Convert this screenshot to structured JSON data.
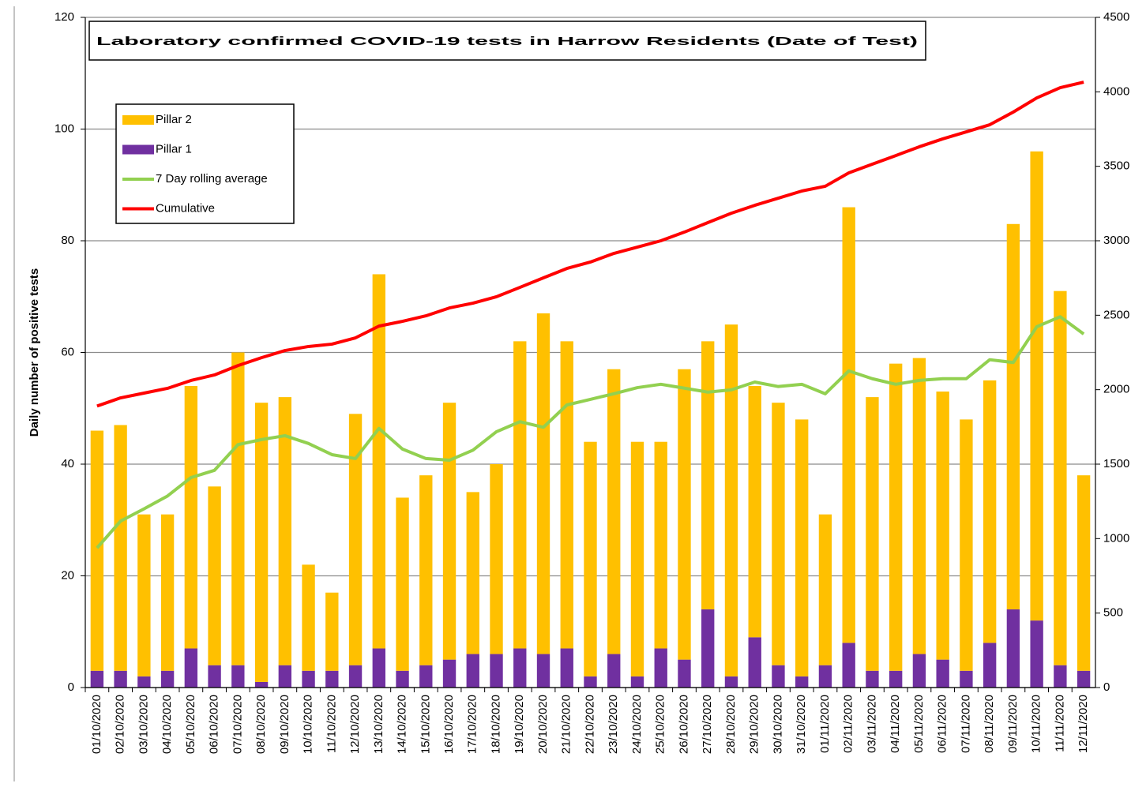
{
  "chart_data": {
    "type": "bar",
    "stacked": true,
    "title": "Laboratory confirmed COVID-19 tests in Harrow Residents (Date of Test)",
    "y_label": "Daily number of positive tests",
    "categories": [
      "01/10/2020",
      "02/10/2020",
      "03/10/2020",
      "04/10/2020",
      "05/10/2020",
      "06/10/2020",
      "07/10/2020",
      "08/10/2020",
      "09/10/2020",
      "10/10/2020",
      "11/10/2020",
      "12/10/2020",
      "13/10/2020",
      "14/10/2020",
      "15/10/2020",
      "16/10/2020",
      "17/10/2020",
      "18/10/2020",
      "19/10/2020",
      "20/10/2020",
      "21/10/2020",
      "22/10/2020",
      "23/10/2020",
      "24/10/2020",
      "25/10/2020",
      "26/10/2020",
      "27/10/2020",
      "28/10/2020",
      "29/10/2020",
      "30/10/2020",
      "31/10/2020",
      "01/11/2020",
      "02/11/2020",
      "03/11/2020",
      "04/11/2020",
      "05/11/2020",
      "06/11/2020",
      "07/11/2020",
      "08/11/2020",
      "09/11/2020",
      "10/11/2020",
      "11/11/2020",
      "12/11/2020"
    ],
    "series": [
      {
        "name": "Pillar 2",
        "type": "bar",
        "color": "#FFC000",
        "values": [
          43,
          44,
          29,
          28,
          47,
          32,
          56,
          50,
          48,
          19,
          14,
          45,
          67,
          31,
          34,
          46,
          29,
          34,
          55,
          61,
          55,
          42,
          51,
          42,
          37,
          52,
          48,
          63,
          45,
          47,
          46,
          27,
          78,
          49,
          55,
          53,
          48,
          45,
          47,
          69,
          84,
          67,
          35
        ]
      },
      {
        "name": "Pillar 1",
        "type": "bar",
        "color": "#7030A0",
        "values": [
          3,
          3,
          2,
          3,
          7,
          4,
          4,
          1,
          4,
          3,
          3,
          4,
          7,
          3,
          4,
          5,
          6,
          6,
          7,
          6,
          7,
          2,
          6,
          2,
          7,
          5,
          14,
          2,
          9,
          4,
          2,
          4,
          8,
          3,
          3,
          6,
          5,
          3,
          8,
          14,
          12,
          4,
          3
        ]
      },
      {
        "name": "7 Day rolling average",
        "type": "line",
        "color": "#92D050",
        "values": [
          25,
          29.8,
          32,
          34.3,
          37.6,
          38.9,
          43.5,
          44.4,
          45.1,
          43.7,
          41.7,
          41,
          46.4,
          42.7,
          41,
          40.7,
          42.5,
          45.8,
          47.6,
          46.6,
          50.6,
          51.6,
          52.6,
          53.7,
          54.3,
          53.6,
          52.9,
          53.3,
          54.7,
          53.9,
          54.3,
          52.6,
          56.7,
          55.3,
          54.3,
          55,
          55.3,
          55.3,
          58.7,
          58.2,
          64.6,
          66.4,
          63.3
        ]
      },
      {
        "name": "Cumulative",
        "type": "line",
        "axis": "y2",
        "color": "#FF0000",
        "values": [
          1890,
          1945,
          1977,
          2009,
          2062,
          2099,
          2162,
          2215,
          2263,
          2290,
          2306,
          2348,
          2427,
          2459,
          2496,
          2549,
          2581,
          2624,
          2687,
          2751,
          2814,
          2857,
          2915,
          2957,
          3000,
          3058,
          3122,
          3185,
          3238,
          3286,
          3334,
          3366,
          3456,
          3514,
          3572,
          3631,
          3684,
          3731,
          3779,
          3864,
          3959,
          4028,
          4065
        ]
      }
    ],
    "ylim": [
      0,
      120
    ],
    "yticks": [
      0,
      20,
      40,
      60,
      80,
      100,
      120
    ],
    "y2lim": [
      0,
      4500
    ],
    "y2ticks": [
      0,
      500,
      1000,
      1500,
      2000,
      2500,
      3000,
      3500,
      4000,
      4500
    ],
    "grid": true,
    "legend": "upper left"
  }
}
